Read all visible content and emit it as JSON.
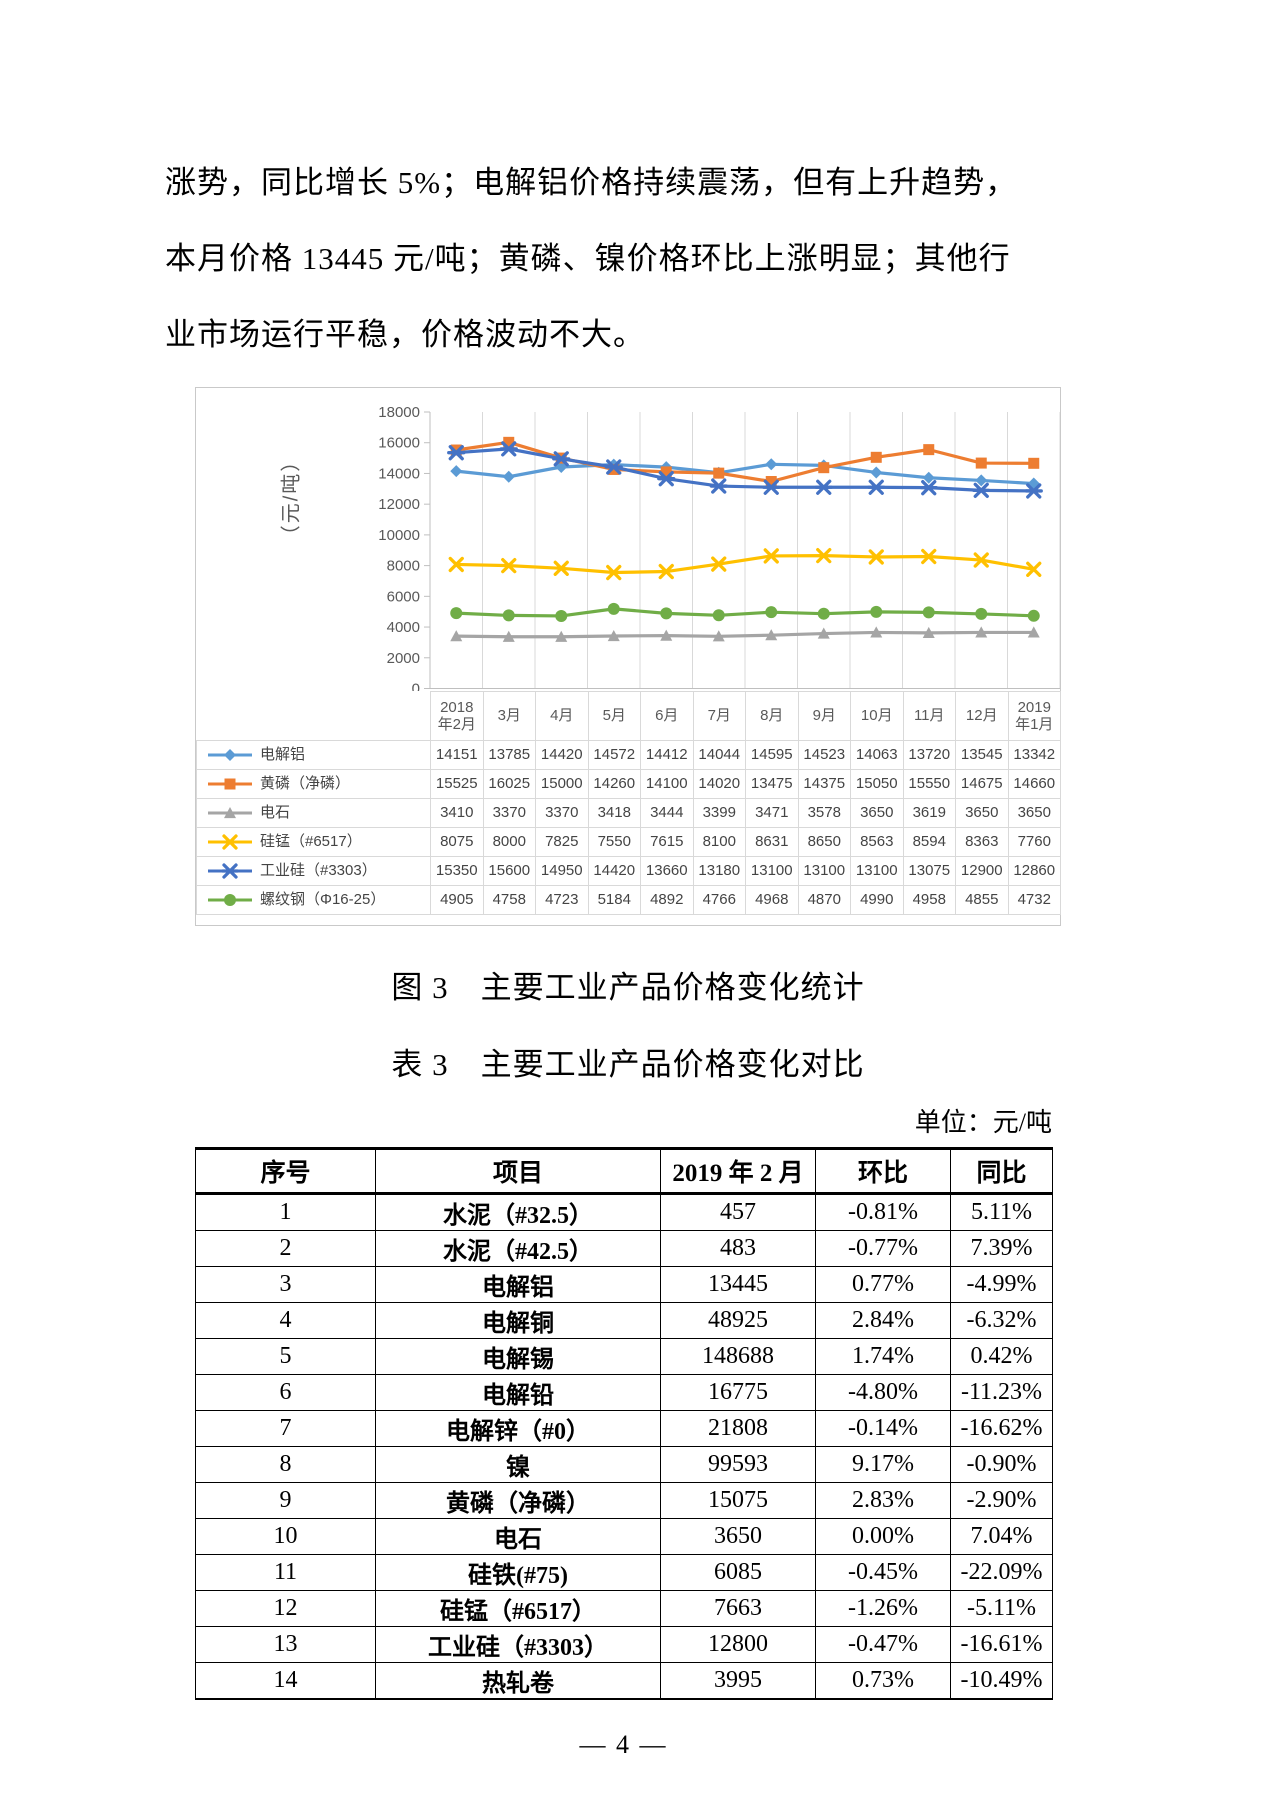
{
  "page": {
    "body_lines": [
      "涨势，同比增长 5%；电解铝价格持续震荡，但有上升趋势，",
      "本月价格 13445 元/吨；黄磷、镍价格环比上涨明显；其他行",
      "业市场运行平稳，价格波动不大。"
    ],
    "figure_caption": "图 3　主要工业产品价格变化统计",
    "table_caption": "表 3　主要工业产品价格变化对比",
    "unit_note": "单位：元/吨",
    "page_number": "— 4 —"
  },
  "chart_data": {
    "type": "line",
    "ylabel": "（元/吨）",
    "ylim": [
      0,
      18000
    ],
    "ytick_step": 2000,
    "grid": "vertical",
    "legend_position": "bottom-table",
    "categories": [
      "2018\n年2月",
      "3月",
      "4月",
      "5月",
      "6月",
      "7月",
      "8月",
      "9月",
      "10月",
      "11月",
      "12月",
      "2019\n年1月"
    ],
    "series": [
      {
        "name": "电解铝",
        "color": "#5B9BD5",
        "marker": "diamond",
        "values": [
          14151,
          13785,
          14420,
          14572,
          14412,
          14044,
          14595,
          14523,
          14063,
          13720,
          13545,
          13342
        ]
      },
      {
        "name": "黄磷（净磷）",
        "color": "#ED7D31",
        "marker": "square",
        "values": [
          15525,
          16025,
          15000,
          14260,
          14100,
          14020,
          13475,
          14375,
          15050,
          15550,
          14675,
          14660
        ]
      },
      {
        "name": "电石",
        "color": "#A5A5A5",
        "marker": "triangle",
        "values": [
          3410,
          3370,
          3370,
          3418,
          3444,
          3399,
          3471,
          3578,
          3650,
          3619,
          3650,
          3650
        ]
      },
      {
        "name": "硅锰（#6517）",
        "color": "#FFC000",
        "marker": "x",
        "values": [
          8075,
          8000,
          7825,
          7550,
          7615,
          8100,
          8631,
          8650,
          8563,
          8594,
          8363,
          7760
        ]
      },
      {
        "name": "工业硅（#3303）",
        "color": "#4472C4",
        "marker": "asterisk",
        "values": [
          15350,
          15600,
          14950,
          14420,
          13660,
          13180,
          13100,
          13100,
          13100,
          13075,
          12900,
          12860
        ]
      },
      {
        "name": "螺纹钢（Φ16-25）",
        "color": "#70AD47",
        "marker": "circle",
        "values": [
          4905,
          4758,
          4723,
          5184,
          4892,
          4766,
          4968,
          4870,
          4990,
          4958,
          4855,
          4732
        ]
      }
    ]
  },
  "price_table": {
    "headers": [
      "序号",
      "项目",
      "2019 年 2 月",
      "环比",
      "同比"
    ],
    "rows": [
      [
        "1",
        "水泥（#32.5）",
        "457",
        "-0.81%",
        "5.11%"
      ],
      [
        "2",
        "水泥（#42.5）",
        "483",
        "-0.77%",
        "7.39%"
      ],
      [
        "3",
        "电解铝",
        "13445",
        "0.77%",
        "-4.99%"
      ],
      [
        "4",
        "电解铜",
        "48925",
        "2.84%",
        "-6.32%"
      ],
      [
        "5",
        "电解锡",
        "148688",
        "1.74%",
        "0.42%"
      ],
      [
        "6",
        "电解铅",
        "16775",
        "-4.80%",
        "-11.23%"
      ],
      [
        "7",
        "电解锌（#0）",
        "21808",
        "-0.14%",
        "-16.62%"
      ],
      [
        "8",
        "镍",
        "99593",
        "9.17%",
        "-0.90%"
      ],
      [
        "9",
        "黄磷（净磷）",
        "15075",
        "2.83%",
        "-2.90%"
      ],
      [
        "10",
        "电石",
        "3650",
        "0.00%",
        "7.04%"
      ],
      [
        "11",
        "硅铁(#75)",
        "6085",
        "-0.45%",
        "-22.09%"
      ],
      [
        "12",
        "硅锰（#6517）",
        "7663",
        "-1.26%",
        "-5.11%"
      ],
      [
        "13",
        "工业硅（#3303）",
        "12800",
        "-0.47%",
        "-16.61%"
      ],
      [
        "14",
        "热轧卷",
        "3995",
        "0.73%",
        "-10.49%"
      ]
    ]
  }
}
